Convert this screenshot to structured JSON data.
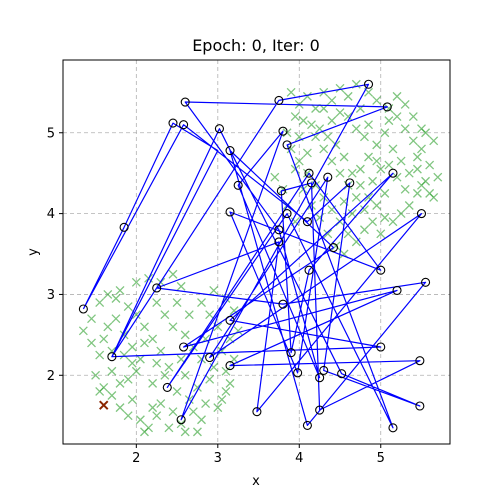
{
  "chart_data": {
    "type": "scatter",
    "title": "Epoch: 0, Iter: 0",
    "xlabel": "x",
    "ylabel": "y",
    "xlim": [
      1.1,
      5.85
    ],
    "ylim": [
      1.15,
      5.9
    ],
    "xticks": [
      2,
      3,
      4,
      5
    ],
    "yticks": [
      2,
      3,
      4,
      5
    ],
    "grid": true,
    "colors": {
      "samples": "#2ca02c",
      "nodes": "#000000",
      "path": "#0000ff",
      "start": "#8b2500"
    },
    "series": [
      {
        "kind": "samples",
        "marker": "x",
        "points": [
          [
            1.35,
            2.55
          ],
          [
            1.45,
            2.4
          ],
          [
            1.55,
            2.25
          ],
          [
            1.5,
            2.0
          ],
          [
            1.6,
            1.85
          ],
          [
            1.7,
            1.75
          ],
          [
            1.8,
            1.9
          ],
          [
            1.55,
            1.8
          ],
          [
            1.65,
            2.6
          ],
          [
            1.75,
            2.7
          ],
          [
            1.85,
            2.5
          ],
          [
            1.95,
            2.35
          ],
          [
            2.05,
            2.2
          ],
          [
            2.0,
            2.05
          ],
          [
            1.9,
            1.95
          ],
          [
            1.8,
            1.6
          ],
          [
            1.9,
            1.5
          ],
          [
            2.05,
            1.45
          ],
          [
            2.1,
            1.3
          ],
          [
            2.15,
            1.35
          ],
          [
            2.25,
            1.5
          ],
          [
            2.3,
            1.65
          ],
          [
            2.45,
            1.55
          ],
          [
            2.55,
            1.4
          ],
          [
            2.6,
            1.3
          ],
          [
            2.7,
            1.55
          ],
          [
            2.8,
            1.45
          ],
          [
            2.85,
            1.65
          ],
          [
            3.0,
            1.6
          ],
          [
            3.1,
            1.8
          ],
          [
            3.15,
            1.9
          ],
          [
            2.9,
            1.95
          ],
          [
            2.75,
            1.85
          ],
          [
            2.6,
            2.0
          ],
          [
            2.4,
            2.1
          ],
          [
            2.3,
            2.3
          ],
          [
            2.2,
            2.45
          ],
          [
            2.1,
            2.6
          ],
          [
            2.0,
            2.75
          ],
          [
            1.9,
            2.85
          ],
          [
            1.75,
            2.95
          ],
          [
            1.65,
            3.0
          ],
          [
            1.8,
            3.05
          ],
          [
            2.0,
            3.15
          ],
          [
            2.15,
            3.2
          ],
          [
            2.3,
            3.15
          ],
          [
            2.45,
            3.25
          ],
          [
            2.55,
            3.1
          ],
          [
            2.5,
            2.9
          ],
          [
            2.35,
            2.75
          ],
          [
            2.45,
            2.6
          ],
          [
            2.6,
            2.5
          ],
          [
            2.7,
            2.35
          ],
          [
            2.8,
            2.2
          ],
          [
            2.95,
            2.1
          ],
          [
            3.05,
            2.3
          ],
          [
            3.15,
            2.45
          ],
          [
            3.0,
            2.6
          ],
          [
            2.9,
            2.75
          ],
          [
            2.8,
            2.9
          ],
          [
            2.95,
            3.05
          ],
          [
            3.1,
            2.95
          ],
          [
            3.2,
            2.8
          ],
          [
            3.25,
            2.55
          ],
          [
            3.2,
            2.2
          ],
          [
            3.1,
            2.05
          ],
          [
            2.85,
            2.45
          ],
          [
            2.65,
            2.75
          ],
          [
            2.25,
            2.9
          ],
          [
            2.1,
            2.4
          ],
          [
            1.95,
            2.15
          ],
          [
            1.7,
            2.3
          ],
          [
            1.6,
            2.45
          ],
          [
            1.45,
            2.7
          ],
          [
            1.55,
            2.9
          ],
          [
            1.85,
            2.25
          ],
          [
            2.2,
            1.9
          ],
          [
            2.35,
            2.0
          ],
          [
            2.5,
            1.8
          ],
          [
            2.65,
            1.7
          ],
          [
            3.05,
            1.7
          ],
          [
            1.95,
            1.7
          ],
          [
            2.2,
            1.6
          ],
          [
            2.4,
            1.35
          ],
          [
            2.75,
            1.3
          ],
          [
            1.7,
            2.05
          ],
          [
            2.25,
            2.15
          ],
          [
            2.55,
            2.2
          ],
          [
            3.9,
            5.5
          ],
          [
            4.0,
            5.35
          ],
          [
            4.1,
            5.45
          ],
          [
            4.2,
            5.3
          ],
          [
            4.3,
            5.5
          ],
          [
            4.4,
            5.4
          ],
          [
            4.5,
            5.55
          ],
          [
            4.6,
            5.45
          ],
          [
            4.7,
            5.6
          ],
          [
            4.85,
            5.5
          ],
          [
            4.95,
            5.4
          ],
          [
            5.1,
            5.3
          ],
          [
            5.2,
            5.2
          ],
          [
            5.3,
            5.05
          ],
          [
            5.4,
            4.9
          ],
          [
            5.5,
            4.8
          ],
          [
            5.6,
            4.6
          ],
          [
            5.55,
            4.4
          ],
          [
            5.45,
            4.25
          ],
          [
            5.35,
            4.1
          ],
          [
            5.25,
            4.0
          ],
          [
            5.15,
            3.9
          ],
          [
            5.05,
            3.95
          ],
          [
            4.95,
            4.1
          ],
          [
            4.85,
            4.2
          ],
          [
            4.75,
            4.35
          ],
          [
            4.65,
            4.5
          ],
          [
            4.55,
            4.7
          ],
          [
            4.45,
            4.85
          ],
          [
            4.35,
            4.95
          ],
          [
            4.25,
            5.05
          ],
          [
            4.15,
            5.1
          ],
          [
            4.05,
            5.15
          ],
          [
            3.95,
            5.2
          ],
          [
            3.85,
            5.0
          ],
          [
            3.9,
            4.8
          ],
          [
            4.0,
            4.65
          ],
          [
            4.1,
            4.5
          ],
          [
            4.2,
            4.35
          ],
          [
            4.3,
            4.2
          ],
          [
            4.4,
            4.05
          ],
          [
            4.5,
            3.9
          ],
          [
            4.6,
            3.75
          ],
          [
            4.7,
            3.65
          ],
          [
            4.8,
            3.8
          ],
          [
            4.9,
            3.9
          ],
          [
            5.0,
            3.75
          ],
          [
            4.55,
            4.15
          ],
          [
            4.65,
            4.0
          ],
          [
            4.75,
            4.55
          ],
          [
            4.85,
            4.7
          ],
          [
            4.95,
            4.85
          ],
          [
            5.05,
            5.0
          ],
          [
            5.15,
            4.8
          ],
          [
            5.25,
            4.65
          ],
          [
            5.35,
            4.5
          ],
          [
            5.45,
            4.55
          ],
          [
            5.5,
            4.35
          ],
          [
            5.6,
            4.25
          ],
          [
            5.7,
            4.45
          ],
          [
            5.65,
            4.2
          ],
          [
            5.3,
            4.3
          ],
          [
            5.2,
            4.45
          ],
          [
            5.1,
            4.6
          ],
          [
            5.0,
            4.55
          ],
          [
            4.9,
            4.4
          ],
          [
            4.8,
            4.05
          ],
          [
            4.7,
            4.2
          ],
          [
            4.6,
            4.35
          ],
          [
            4.5,
            4.5
          ],
          [
            4.4,
            4.65
          ],
          [
            4.3,
            4.8
          ],
          [
            4.2,
            4.95
          ],
          [
            4.1,
            4.75
          ],
          [
            4.0,
            4.95
          ],
          [
            3.95,
            4.55
          ],
          [
            4.05,
            4.3
          ],
          [
            4.15,
            4.1
          ],
          [
            4.25,
            3.95
          ],
          [
            4.35,
            3.75
          ],
          [
            4.45,
            3.6
          ],
          [
            4.55,
            3.5
          ],
          [
            3.8,
            4.3
          ],
          [
            3.7,
            4.45
          ],
          [
            3.85,
            4.1
          ],
          [
            3.95,
            3.9
          ],
          [
            5.5,
            5.05
          ],
          [
            5.4,
            5.2
          ],
          [
            5.3,
            5.35
          ],
          [
            5.2,
            5.45
          ],
          [
            4.6,
            5.2
          ],
          [
            4.7,
            5.05
          ],
          [
            4.8,
            4.95
          ],
          [
            4.5,
            5.25
          ],
          [
            4.4,
            5.15
          ],
          [
            4.3,
            5.3
          ],
          [
            5.65,
            4.9
          ],
          [
            5.55,
            5.0
          ],
          [
            5.45,
            4.7
          ],
          [
            5.05,
            4.25
          ],
          [
            4.95,
            4.65
          ],
          [
            4.85,
            5.1
          ],
          [
            4.75,
            5.3
          ],
          [
            5.1,
            5.15
          ]
        ]
      },
      {
        "kind": "nodes",
        "marker": "o",
        "points": [
          [
            1.35,
            2.82
          ],
          [
            1.85,
            3.83
          ],
          [
            2.45,
            5.12
          ],
          [
            2.6,
            5.38
          ],
          [
            2.58,
            5.1
          ],
          [
            3.02,
            5.05
          ],
          [
            3.15,
            4.78
          ],
          [
            3.25,
            4.35
          ],
          [
            3.15,
            4.02
          ],
          [
            3.75,
            5.4
          ],
          [
            3.8,
            5.02
          ],
          [
            3.85,
            4.85
          ],
          [
            3.78,
            4.28
          ],
          [
            3.75,
            3.8
          ],
          [
            3.75,
            3.65
          ],
          [
            3.85,
            4.0
          ],
          [
            4.12,
            4.5
          ],
          [
            4.15,
            4.38
          ],
          [
            4.35,
            4.45
          ],
          [
            4.1,
            3.9
          ],
          [
            4.42,
            3.58
          ],
          [
            4.62,
            4.38
          ],
          [
            4.85,
            5.6
          ],
          [
            5.08,
            5.32
          ],
          [
            5.15,
            4.5
          ],
          [
            5.0,
            3.3
          ],
          [
            5.5,
            4.0
          ],
          [
            5.2,
            3.05
          ],
          [
            5.55,
            3.15
          ],
          [
            5.0,
            2.35
          ],
          [
            5.48,
            2.18
          ],
          [
            5.48,
            1.62
          ],
          [
            5.15,
            1.35
          ],
          [
            4.12,
            3.3
          ],
          [
            3.8,
            2.88
          ],
          [
            3.9,
            2.28
          ],
          [
            3.98,
            2.03
          ],
          [
            4.25,
            1.97
          ],
          [
            4.3,
            2.06
          ],
          [
            4.52,
            2.02
          ],
          [
            4.1,
            1.38
          ],
          [
            4.25,
            1.57
          ],
          [
            3.48,
            1.55
          ],
          [
            2.55,
            1.45
          ],
          [
            2.38,
            1.85
          ],
          [
            2.58,
            2.35
          ],
          [
            2.25,
            3.08
          ],
          [
            3.15,
            2.68
          ],
          [
            2.9,
            2.22
          ],
          [
            3.15,
            2.12
          ],
          [
            1.7,
            2.23
          ]
        ]
      },
      {
        "kind": "path",
        "closed": true,
        "points": [
          [
            1.35,
            2.82
          ],
          [
            1.85,
            3.83
          ],
          [
            2.45,
            5.12
          ],
          [
            3.0,
            4.78
          ],
          [
            1.7,
            2.23
          ],
          [
            3.75,
            5.4
          ],
          [
            4.85,
            5.6
          ],
          [
            2.55,
            1.45
          ],
          [
            3.8,
            5.02
          ],
          [
            3.25,
            4.35
          ],
          [
            4.25,
            1.97
          ],
          [
            3.75,
            3.8
          ],
          [
            2.6,
            5.38
          ],
          [
            5.08,
            5.32
          ],
          [
            3.85,
            4.85
          ],
          [
            5.15,
            1.35
          ],
          [
            3.85,
            4.0
          ],
          [
            2.38,
            1.85
          ],
          [
            4.12,
            4.5
          ],
          [
            5.0,
            3.3
          ],
          [
            3.15,
            4.02
          ],
          [
            3.98,
            2.03
          ],
          [
            4.35,
            4.45
          ],
          [
            2.9,
            2.22
          ],
          [
            5.5,
            4.0
          ],
          [
            3.48,
            1.55
          ],
          [
            3.75,
            3.65
          ],
          [
            2.25,
            3.08
          ],
          [
            3.8,
            2.88
          ],
          [
            5.55,
            3.15
          ],
          [
            4.1,
            1.38
          ],
          [
            3.15,
            4.78
          ],
          [
            4.42,
            3.58
          ],
          [
            2.58,
            2.35
          ],
          [
            5.2,
            3.05
          ],
          [
            3.15,
            2.12
          ],
          [
            5.48,
            2.18
          ],
          [
            4.25,
            1.57
          ],
          [
            4.15,
            4.38
          ],
          [
            3.78,
            4.28
          ],
          [
            3.9,
            2.28
          ],
          [
            4.12,
            3.3
          ],
          [
            5.15,
            4.5
          ],
          [
            3.15,
            2.68
          ],
          [
            5.0,
            2.35
          ],
          [
            1.7,
            2.23
          ],
          [
            3.02,
            5.05
          ],
          [
            4.52,
            2.02
          ],
          [
            5.48,
            1.62
          ],
          [
            4.3,
            2.06
          ],
          [
            4.62,
            4.38
          ],
          [
            4.1,
            3.9
          ],
          [
            2.58,
            5.1
          ],
          [
            1.35,
            2.82
          ]
        ]
      },
      {
        "kind": "start",
        "marker": "x",
        "points": [
          [
            1.6,
            1.63
          ]
        ]
      }
    ]
  }
}
